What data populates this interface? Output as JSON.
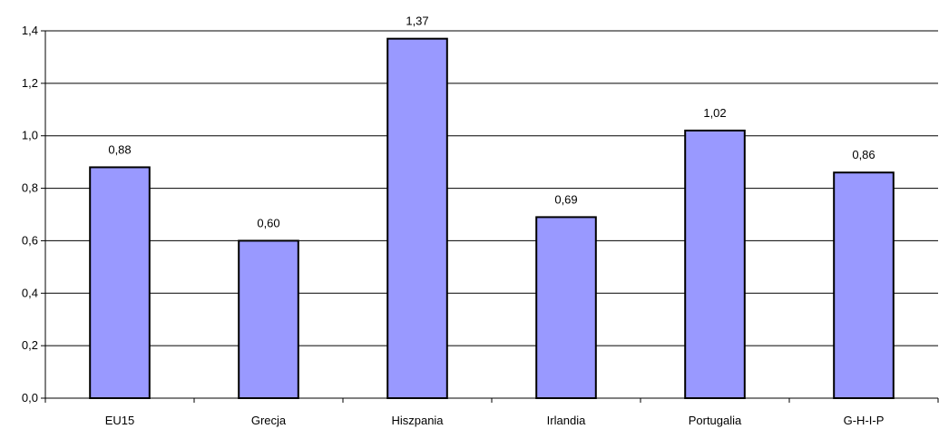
{
  "chart_data": {
    "type": "bar",
    "categories": [
      "EU15",
      "Grecja",
      "Hiszpania",
      "Irlandia",
      "Portugalia",
      "G-H-I-P"
    ],
    "values": [
      0.88,
      0.6,
      1.37,
      0.69,
      1.02,
      0.86
    ],
    "value_labels": [
      "0,88",
      "0,60",
      "1,37",
      "0,69",
      "1,02",
      "0,86"
    ],
    "y_ticks": [
      "0,0",
      "0,2",
      "0,4",
      "0,6",
      "0,8",
      "1,0",
      "1,2",
      "1,4"
    ],
    "ylim": [
      0,
      1.4
    ],
    "grid": true,
    "colors": {
      "bar_fill": "#9999ff",
      "bar_stroke": "#000000",
      "grid": "#000000"
    }
  }
}
